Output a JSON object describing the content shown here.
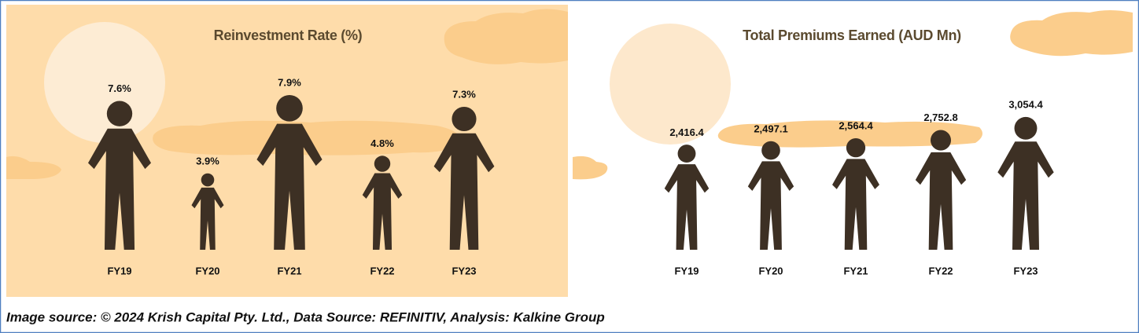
{
  "chart_data": [
    {
      "type": "pictograph",
      "title": "Reinvestment Rate (%)",
      "categories": [
        "FY19",
        "FY20",
        "FY21",
        "FY22",
        "FY23"
      ],
      "values": [
        7.6,
        3.9,
        7.9,
        4.8,
        7.3
      ],
      "value_labels": [
        "7.6%",
        "3.9%",
        "7.9%",
        "4.8%",
        "7.3%"
      ],
      "color": "#3d3024"
    },
    {
      "type": "pictograph",
      "title": "Total Premiums Earned (AUD Mn)",
      "categories": [
        "FY19",
        "FY20",
        "FY21",
        "FY22",
        "FY23"
      ],
      "values": [
        2416.4,
        2497.1,
        2564.4,
        2752.8,
        3054.4
      ],
      "value_labels": [
        "2,416.4",
        "2,497.1",
        "2,564.4",
        "2,752.8",
        "3,054.4"
      ],
      "color": "#3d3024"
    }
  ],
  "caption": "Image source: © 2024 Krish Capital Pty. Ltd., Data Source: REFINITIV, Analysis: Kalkine Group"
}
